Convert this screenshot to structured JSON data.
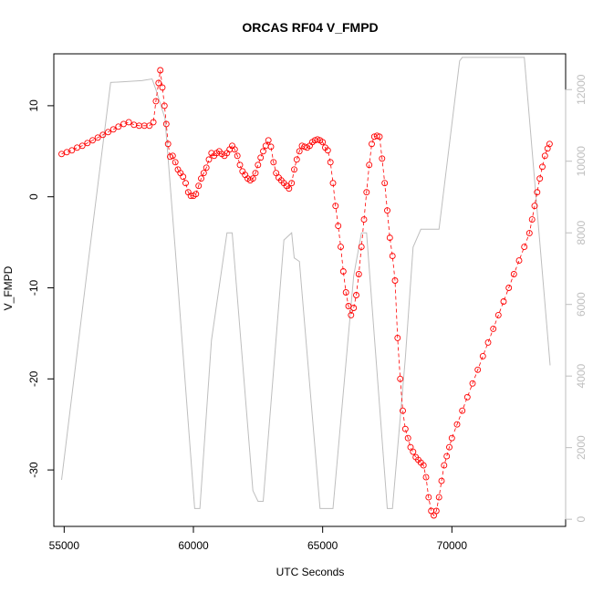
{
  "chart_data": {
    "type": "line",
    "title": "ORCAS RF04 V_FMPD",
    "xlabel": "UTC Seconds",
    "ylabel": "V_FMPD",
    "xlim": [
      54600,
      74400
    ],
    "ylim": [
      -36.2,
      15.7
    ],
    "y2lim": [
      -200,
      13000
    ],
    "x_ticks": [
      55000,
      60000,
      65000,
      70000
    ],
    "y_ticks": [
      -30,
      -20,
      -10,
      0,
      10
    ],
    "y2_ticks": [
      0,
      2000,
      4000,
      6000,
      8000,
      10000,
      12000
    ],
    "grid": false,
    "legend": "none",
    "series": [
      {
        "role": "primary",
        "axis": "left",
        "style": "points-dashed-line",
        "color": "#ff0000",
        "points": [
          [
            54900,
            4.7
          ],
          [
            55100,
            4.9
          ],
          [
            55300,
            5.1
          ],
          [
            55500,
            5.4
          ],
          [
            55700,
            5.6
          ],
          [
            55900,
            5.9
          ],
          [
            56100,
            6.2
          ],
          [
            56300,
            6.5
          ],
          [
            56500,
            6.8
          ],
          [
            56700,
            7.1
          ],
          [
            56900,
            7.4
          ],
          [
            57100,
            7.7
          ],
          [
            57300,
            8.0
          ],
          [
            57500,
            8.2
          ],
          [
            57700,
            7.9
          ],
          [
            57900,
            7.8
          ],
          [
            58100,
            7.8
          ],
          [
            58300,
            7.8
          ],
          [
            58450,
            8.2
          ],
          [
            58550,
            10.5
          ],
          [
            58650,
            12.5
          ],
          [
            58720,
            13.9
          ],
          [
            58800,
            12.0
          ],
          [
            58880,
            10.0
          ],
          [
            58950,
            8.0
          ],
          [
            59020,
            5.8
          ],
          [
            59100,
            4.4
          ],
          [
            59200,
            4.5
          ],
          [
            59300,
            3.8
          ],
          [
            59400,
            3.0
          ],
          [
            59500,
            2.6
          ],
          [
            59600,
            2.2
          ],
          [
            59700,
            1.5
          ],
          [
            59800,
            0.5
          ],
          [
            59900,
            0.1
          ],
          [
            60000,
            0.1
          ],
          [
            60100,
            0.3
          ],
          [
            60200,
            1.2
          ],
          [
            60300,
            2.0
          ],
          [
            60400,
            2.6
          ],
          [
            60500,
            3.2
          ],
          [
            60600,
            4.1
          ],
          [
            60700,
            4.8
          ],
          [
            60800,
            4.5
          ],
          [
            60900,
            4.8
          ],
          [
            61000,
            5.0
          ],
          [
            61100,
            4.7
          ],
          [
            61200,
            4.5
          ],
          [
            61300,
            4.8
          ],
          [
            61400,
            5.2
          ],
          [
            61500,
            5.6
          ],
          [
            61600,
            5.2
          ],
          [
            61700,
            4.5
          ],
          [
            61800,
            3.5
          ],
          [
            61900,
            2.8
          ],
          [
            62000,
            2.4
          ],
          [
            62100,
            2.0
          ],
          [
            62200,
            1.8
          ],
          [
            62300,
            2.0
          ],
          [
            62400,
            2.6
          ],
          [
            62500,
            3.5
          ],
          [
            62600,
            4.3
          ],
          [
            62700,
            5.0
          ],
          [
            62800,
            5.6
          ],
          [
            62900,
            6.2
          ],
          [
            63000,
            5.5
          ],
          [
            63100,
            3.8
          ],
          [
            63200,
            2.6
          ],
          [
            63300,
            2.1
          ],
          [
            63400,
            1.8
          ],
          [
            63500,
            1.5
          ],
          [
            63600,
            1.2
          ],
          [
            63700,
            0.9
          ],
          [
            63800,
            1.5
          ],
          [
            63900,
            3.0
          ],
          [
            64000,
            4.1
          ],
          [
            64100,
            5.0
          ],
          [
            64200,
            5.6
          ],
          [
            64300,
            5.5
          ],
          [
            64400,
            5.4
          ],
          [
            64500,
            5.6
          ],
          [
            64600,
            6.0
          ],
          [
            64700,
            6.2
          ],
          [
            64800,
            6.3
          ],
          [
            64900,
            6.2
          ],
          [
            65000,
            6.0
          ],
          [
            65100,
            5.4
          ],
          [
            65200,
            5.1
          ],
          [
            65300,
            3.8
          ],
          [
            65400,
            1.5
          ],
          [
            65500,
            -1.0
          ],
          [
            65600,
            -3.2
          ],
          [
            65700,
            -5.5
          ],
          [
            65800,
            -8.2
          ],
          [
            65900,
            -10.5
          ],
          [
            66000,
            -12.0
          ],
          [
            66100,
            -13.0
          ],
          [
            66200,
            -12.2
          ],
          [
            66300,
            -10.8
          ],
          [
            66400,
            -8.5
          ],
          [
            66500,
            -5.5
          ],
          [
            66600,
            -2.5
          ],
          [
            66700,
            0.5
          ],
          [
            66800,
            3.5
          ],
          [
            66900,
            5.8
          ],
          [
            67000,
            6.6
          ],
          [
            67100,
            6.7
          ],
          [
            67200,
            6.6
          ],
          [
            67300,
            4.2
          ],
          [
            67400,
            1.5
          ],
          [
            67500,
            -1.5
          ],
          [
            67600,
            -4.5
          ],
          [
            67700,
            -6.5
          ],
          [
            67800,
            -9.2
          ],
          [
            67900,
            -15.5
          ],
          [
            68000,
            -20.0
          ],
          [
            68100,
            -23.5
          ],
          [
            68200,
            -25.5
          ],
          [
            68300,
            -26.5
          ],
          [
            68400,
            -27.5
          ],
          [
            68500,
            -28.0
          ],
          [
            68600,
            -28.6
          ],
          [
            68700,
            -28.9
          ],
          [
            68800,
            -29.2
          ],
          [
            68900,
            -29.5
          ],
          [
            69000,
            -30.8
          ],
          [
            69100,
            -33.0
          ],
          [
            69200,
            -34.5
          ],
          [
            69300,
            -35.0
          ],
          [
            69400,
            -34.5
          ],
          [
            69500,
            -33.0
          ],
          [
            69600,
            -31.2
          ],
          [
            69700,
            -29.5
          ],
          [
            69800,
            -28.5
          ],
          [
            69900,
            -27.5
          ],
          [
            70000,
            -26.5
          ],
          [
            70200,
            -25.0
          ],
          [
            70400,
            -23.5
          ],
          [
            70600,
            -22.0
          ],
          [
            70800,
            -20.5
          ],
          [
            71000,
            -19.0
          ],
          [
            71200,
            -17.5
          ],
          [
            71400,
            -16.0
          ],
          [
            71600,
            -14.5
          ],
          [
            71800,
            -13.0
          ],
          [
            72000,
            -11.5
          ],
          [
            72200,
            -10.0
          ],
          [
            72400,
            -8.5
          ],
          [
            72600,
            -7.0
          ],
          [
            72800,
            -5.5
          ],
          [
            73000,
            -4.0
          ],
          [
            73100,
            -2.5
          ],
          [
            73200,
            -1.0
          ],
          [
            73300,
            0.5
          ],
          [
            73400,
            2.0
          ],
          [
            73500,
            3.3
          ],
          [
            73600,
            4.5
          ],
          [
            73700,
            5.3
          ],
          [
            73780,
            5.8
          ]
        ]
      },
      {
        "role": "altitude",
        "axis": "right",
        "style": "line",
        "color": "#bebebe",
        "points": [
          [
            54900,
            1100
          ],
          [
            55900,
            7000
          ],
          [
            56800,
            12200
          ],
          [
            58000,
            12250
          ],
          [
            58400,
            12300
          ],
          [
            58550,
            12000
          ],
          [
            58900,
            11200
          ],
          [
            59300,
            7500
          ],
          [
            59800,
            2700
          ],
          [
            60050,
            300
          ],
          [
            60250,
            300
          ],
          [
            60700,
            5000
          ],
          [
            61300,
            8000
          ],
          [
            61500,
            8000
          ],
          [
            62300,
            800
          ],
          [
            62500,
            500
          ],
          [
            62700,
            500
          ],
          [
            63500,
            7800
          ],
          [
            63800,
            8000
          ],
          [
            63900,
            7300
          ],
          [
            64100,
            7200
          ],
          [
            64900,
            300
          ],
          [
            65200,
            300
          ],
          [
            65400,
            300
          ],
          [
            66200,
            6800
          ],
          [
            66500,
            8000
          ],
          [
            66700,
            8000
          ],
          [
            67500,
            300
          ],
          [
            67700,
            300
          ],
          [
            68200,
            4500
          ],
          [
            68500,
            7600
          ],
          [
            68800,
            8100
          ],
          [
            69500,
            8100
          ],
          [
            70300,
            12800
          ],
          [
            70400,
            12900
          ],
          [
            71500,
            12900
          ],
          [
            72800,
            12900
          ],
          [
            73800,
            4300
          ]
        ]
      }
    ]
  }
}
